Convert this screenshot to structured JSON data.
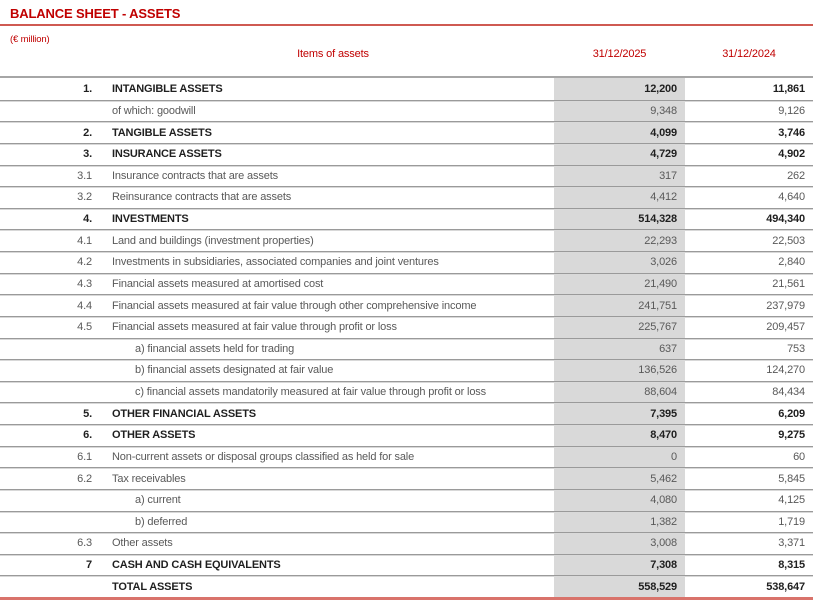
{
  "page": {
    "title": "BALANCE SHEET - ASSETS",
    "unit_note": "(€ million)"
  },
  "table": {
    "headers": {
      "items": "Items of assets",
      "period_current": "31/12/2025",
      "period_prior": "31/12/2024"
    },
    "rows": [
      {
        "num": "1.",
        "label": "INTANGIBLE ASSETS",
        "v2025": "12,200",
        "v2024": "11,861",
        "style": "main"
      },
      {
        "num": "",
        "label": "of which: goodwill",
        "v2025": "9,348",
        "v2024": "9,126",
        "style": "sub"
      },
      {
        "num": "2.",
        "label": "TANGIBLE ASSETS",
        "v2025": "4,099",
        "v2024": "3,746",
        "style": "main"
      },
      {
        "num": "3.",
        "label": "INSURANCE ASSETS",
        "v2025": "4,729",
        "v2024": "4,902",
        "style": "main"
      },
      {
        "num": "3.1",
        "label": "Insurance contracts that are assets",
        "v2025": "317",
        "v2024": "262",
        "style": "sub"
      },
      {
        "num": "3.2",
        "label": "Reinsurance contracts that are assets",
        "v2025": "4,412",
        "v2024": "4,640",
        "style": "sub"
      },
      {
        "num": "4.",
        "label": "INVESTMENTS",
        "v2025": "514,328",
        "v2024": "494,340",
        "style": "main"
      },
      {
        "num": "4.1",
        "label": "Land and buildings (investment properties)",
        "v2025": "22,293",
        "v2024": "22,503",
        "style": "sub"
      },
      {
        "num": "4.2",
        "label": "Investments in subsidiaries, associated companies and joint ventures",
        "v2025": "3,026",
        "v2024": "2,840",
        "style": "sub"
      },
      {
        "num": "4.3",
        "label": "Financial assets measured at amortised cost",
        "v2025": "21,490",
        "v2024": "21,561",
        "style": "sub"
      },
      {
        "num": "4.4",
        "label": "Financial assets measured at fair value through other comprehensive income",
        "v2025": "241,751",
        "v2024": "237,979",
        "style": "sub"
      },
      {
        "num": "4.5",
        "label": "Financial assets measured at fair value through profit or loss",
        "v2025": "225,767",
        "v2024": "209,457",
        "style": "sub"
      },
      {
        "num": "",
        "label": "a) financial assets held for trading",
        "v2025": "637",
        "v2024": "753",
        "style": "indent"
      },
      {
        "num": "",
        "label": "b) financial assets designated at fair value",
        "v2025": "136,526",
        "v2024": "124,270",
        "style": "indent"
      },
      {
        "num": "",
        "label": "c) financial assets mandatorily measured at fair value through profit or loss",
        "v2025": "88,604",
        "v2024": "84,434",
        "style": "indent"
      },
      {
        "num": "5.",
        "label": "OTHER FINANCIAL ASSETS",
        "v2025": "7,395",
        "v2024": "6,209",
        "style": "main"
      },
      {
        "num": "6.",
        "label": "OTHER ASSETS",
        "v2025": "8,470",
        "v2024": "9,275",
        "style": "main"
      },
      {
        "num": "6.1",
        "label": "Non-current assets or disposal groups classified as held for sale",
        "v2025": "0",
        "v2024": "60",
        "style": "sub"
      },
      {
        "num": "6.2",
        "label": "Tax receivables",
        "v2025": "5,462",
        "v2024": "5,845",
        "style": "sub"
      },
      {
        "num": "",
        "label": "a) current",
        "v2025": "4,080",
        "v2024": "4,125",
        "style": "indent"
      },
      {
        "num": "",
        "label": "b) deferred",
        "v2025": "1,382",
        "v2024": "1,719",
        "style": "indent"
      },
      {
        "num": "6.3",
        "label": "Other assets",
        "v2025": "3,008",
        "v2024": "3,371",
        "style": "sub"
      },
      {
        "num": "7",
        "label": "CASH AND CASH EQUIVALENTS",
        "v2025": "7,308",
        "v2024": "8,315",
        "style": "main"
      },
      {
        "num": "",
        "label": "TOTAL ASSETS",
        "v2025": "558,529",
        "v2024": "538,647",
        "style": "total"
      }
    ]
  },
  "colors": {
    "accent_red": "#c00000",
    "title_rule_red": "#cf5a52",
    "bottom_rule_red": "#d9736b",
    "value_column_bg": "#d9d9d9",
    "separator_gray": "#9a9a9a"
  }
}
